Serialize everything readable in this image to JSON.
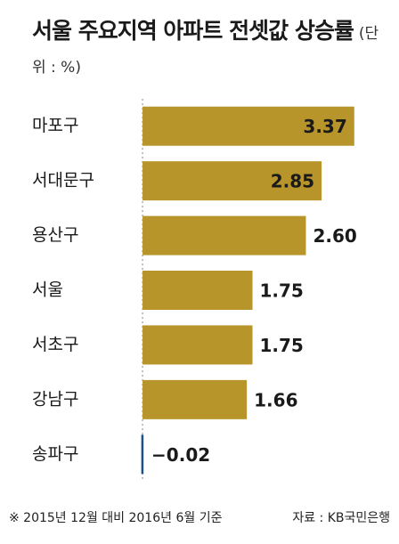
{
  "chart_data": {
    "type": "barh",
    "title": "서울 주요지역 아파트 전셋값 상승률",
    "unit_label": "(단위 : %)",
    "categories": [
      "마포구",
      "서대문구",
      "용산구",
      "서울",
      "서초구",
      "강남구",
      "송파구"
    ],
    "values": [
      3.37,
      2.85,
      2.6,
      1.75,
      1.75,
      1.66,
      -0.02
    ],
    "value_labels": [
      "3.37",
      "2.85",
      "2.60",
      "1.75",
      "1.75",
      "1.66",
      "−0.02"
    ],
    "color": "#b8952b",
    "negative_color": "#1f4e8c",
    "xlim": [
      -0.1,
      3.6
    ],
    "note": "※ 2015년 12월 대비 2016년 6월 기준",
    "source": "자료 : KB국민은행"
  }
}
